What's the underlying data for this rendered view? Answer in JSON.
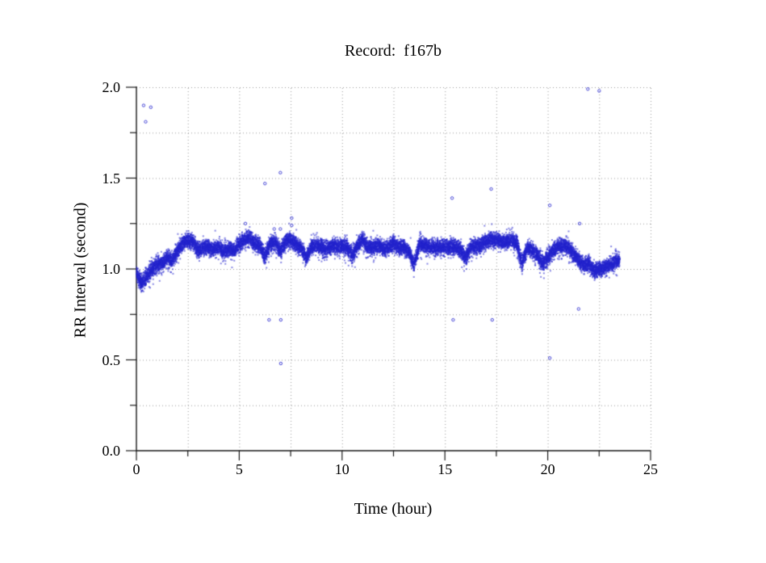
{
  "page": {
    "background": "#ffffff"
  },
  "chart": {
    "title": "Record:  f167b",
    "xlabel": "Time (hour)",
    "ylabel": "RR Interval (second)"
  },
  "chart_data": {
    "type": "scatter",
    "title": "Record:  f167b",
    "xlabel": "Time (hour)",
    "ylabel": "RR Interval (second)",
    "xlim": [
      0,
      25
    ],
    "ylim": [
      0.0,
      2.0
    ],
    "x_major_ticks": [
      0,
      5,
      10,
      15,
      20,
      25
    ],
    "x_minor_ticks": [
      2.5,
      7.5,
      12.5,
      17.5,
      22.5
    ],
    "x_tick_labels": [
      "0",
      "5",
      "10",
      "15",
      "20",
      "25"
    ],
    "y_major_ticks": [
      0.0,
      0.5,
      1.0,
      1.5,
      2.0
    ],
    "y_minor_ticks": [
      0.25,
      0.75,
      1.25,
      1.75
    ],
    "y_tick_labels": [
      "0.0",
      "0.5",
      "1.0",
      "1.5",
      "2.0"
    ],
    "grid": {
      "style": "dotted",
      "color": "#9a9a9a",
      "at": "all major and minor ticks"
    },
    "axes": {
      "color": "#1a1a1a",
      "sides": [
        "left",
        "bottom"
      ]
    },
    "point_color": "#2222cc",
    "marker": "tiny open circle ~2px",
    "series_description": "Dense band of beat-to-beat RR intervals from 0 to 23.5 h, mostly 1.05-1.18 s; band centerline sampled every 0.25 h below, with scatter halfwidth ~0.035 s and occasional downward micro-dips.",
    "band": {
      "t_start": 0,
      "t_step": 0.25,
      "t_end": 23.5,
      "halfwidth": 0.035,
      "mid": [
        0.97,
        0.92,
        0.96,
        1.0,
        1.02,
        1.03,
        1.06,
        1.05,
        1.1,
        1.14,
        1.16,
        1.15,
        1.1,
        1.12,
        1.12,
        1.11,
        1.12,
        1.1,
        1.11,
        1.1,
        1.14,
        1.16,
        1.17,
        1.14,
        1.13,
        1.07,
        1.14,
        1.15,
        1.1,
        1.15,
        1.16,
        1.13,
        1.12,
        1.06,
        1.12,
        1.13,
        1.12,
        1.11,
        1.13,
        1.12,
        1.13,
        1.12,
        1.07,
        1.13,
        1.16,
        1.12,
        1.12,
        1.13,
        1.11,
        1.12,
        1.14,
        1.12,
        1.12,
        1.1,
        1.02,
        1.14,
        1.13,
        1.12,
        1.12,
        1.12,
        1.12,
        1.12,
        1.12,
        1.11,
        1.06,
        1.12,
        1.13,
        1.13,
        1.15,
        1.16,
        1.16,
        1.15,
        1.15,
        1.16,
        1.14,
        1.03,
        1.12,
        1.1,
        1.08,
        1.03,
        1.06,
        1.1,
        1.12,
        1.13,
        1.12,
        1.08,
        1.05,
        1.02,
        1.03,
        0.99,
        1.0,
        1.01,
        1.02,
        1.04,
        1.05
      ]
    },
    "outliers": [
      [
        0.35,
        1.9
      ],
      [
        0.7,
        1.89
      ],
      [
        0.45,
        1.81
      ],
      [
        6.25,
        1.47
      ],
      [
        7.0,
        1.53
      ],
      [
        5.3,
        1.25
      ],
      [
        6.7,
        1.22
      ],
      [
        7.0,
        1.22
      ],
      [
        7.55,
        1.28
      ],
      [
        7.55,
        1.24
      ],
      [
        6.45,
        0.72
      ],
      [
        7.02,
        0.72
      ],
      [
        7.02,
        0.48
      ],
      [
        15.35,
        1.39
      ],
      [
        17.25,
        1.44
      ],
      [
        15.4,
        0.72
      ],
      [
        17.3,
        0.72
      ],
      [
        20.1,
        1.35
      ],
      [
        21.55,
        1.25
      ],
      [
        21.5,
        0.78
      ],
      [
        20.1,
        0.51
      ],
      [
        21.95,
        1.99
      ],
      [
        22.5,
        1.98
      ]
    ]
  }
}
